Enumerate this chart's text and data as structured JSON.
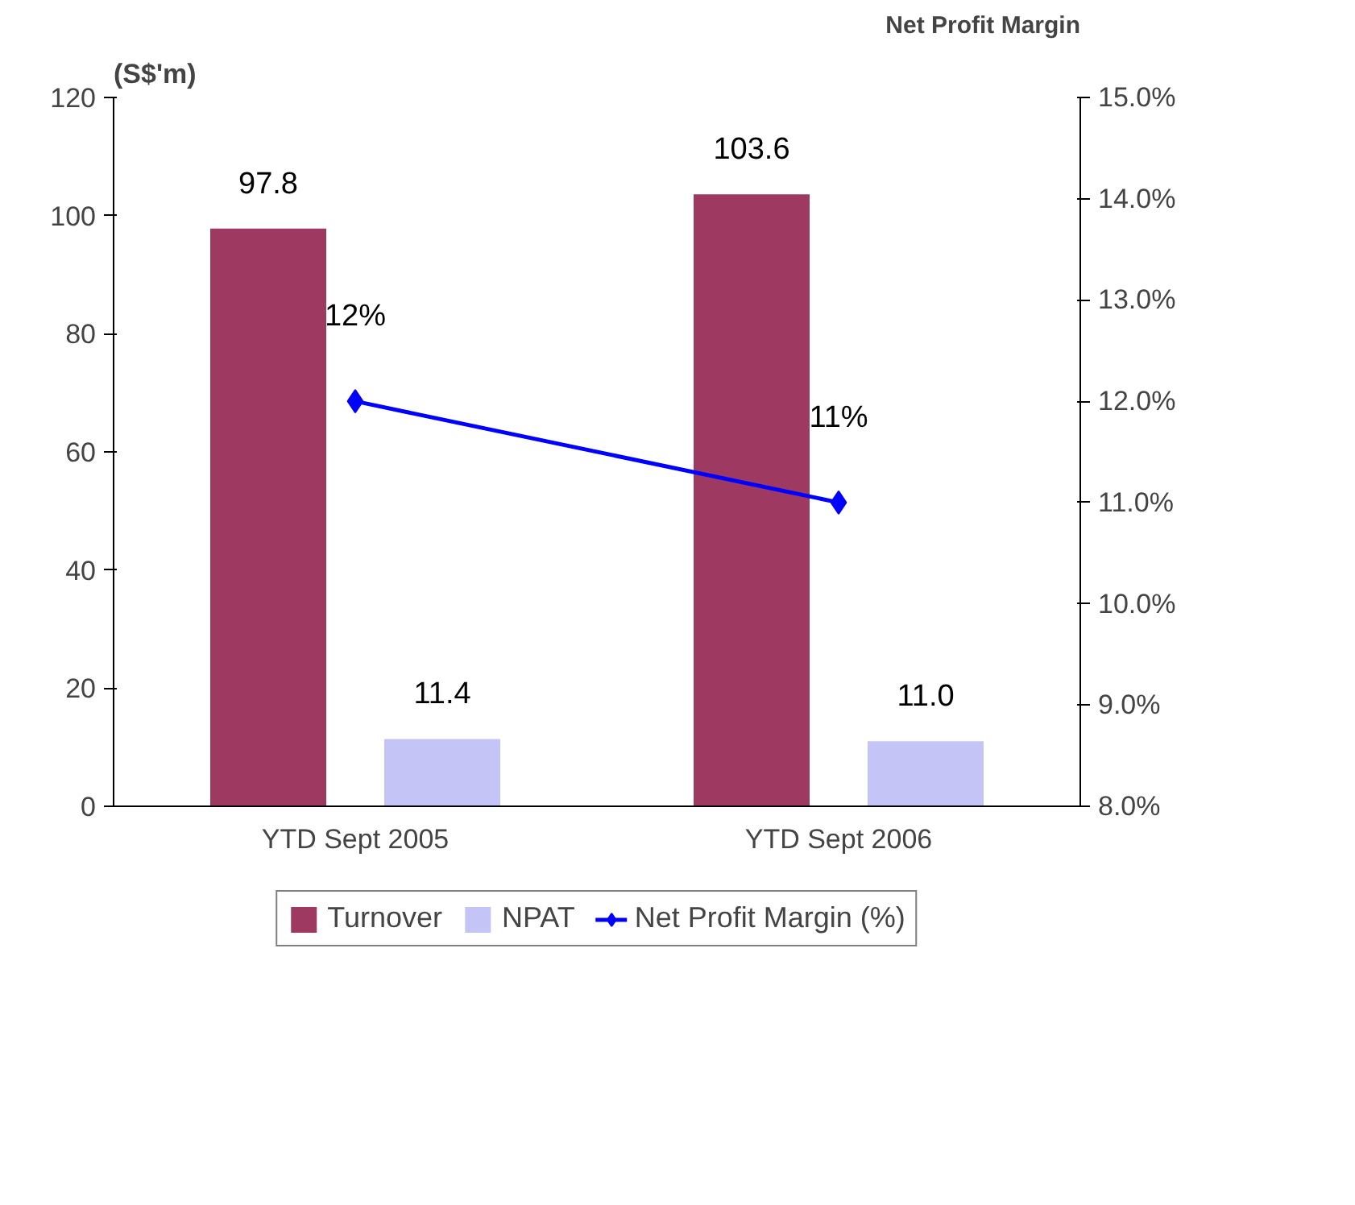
{
  "chart_data": {
    "type": "bar",
    "ylabel": "(S$'m)",
    "y2label": "Net Profit Margin",
    "categories": [
      "YTD Sept 2005",
      "YTD Sept 2006"
    ],
    "series": [
      {
        "name": "Turnover",
        "color": "#9e3a62",
        "values": [
          97.8,
          103.6
        ],
        "value_labels": [
          "97.8",
          "103.6"
        ]
      },
      {
        "name": "NPAT",
        "color": "#c4c4f6",
        "values": [
          11.4,
          11.0
        ],
        "value_labels": [
          "11.4",
          "11.0"
        ]
      },
      {
        "name": "Net Profit Margin (%)",
        "type": "line",
        "axis": "y2",
        "color": "#0000ff",
        "values": [
          12,
          11
        ],
        "value_labels": [
          "12%",
          "11%"
        ],
        "marker": "diamond"
      }
    ],
    "ylim": [
      0,
      120
    ],
    "yticks": [
      0,
      20,
      40,
      60,
      80,
      100,
      120
    ],
    "y2lim": [
      8,
      15
    ],
    "y2ticks": [
      {
        "value": 8,
        "label": "8.0%"
      },
      {
        "value": 9,
        "label": "9.0%"
      },
      {
        "value": 10,
        "label": "10.0%"
      },
      {
        "value": 11,
        "label": "11.0%"
      },
      {
        "value": 12,
        "label": "12.0%"
      },
      {
        "value": 13,
        "label": "13.0%"
      },
      {
        "value": 14,
        "label": "14.0%"
      },
      {
        "value": 15,
        "label": "15.0%"
      }
    ],
    "grid": false,
    "legend": "bottom"
  }
}
